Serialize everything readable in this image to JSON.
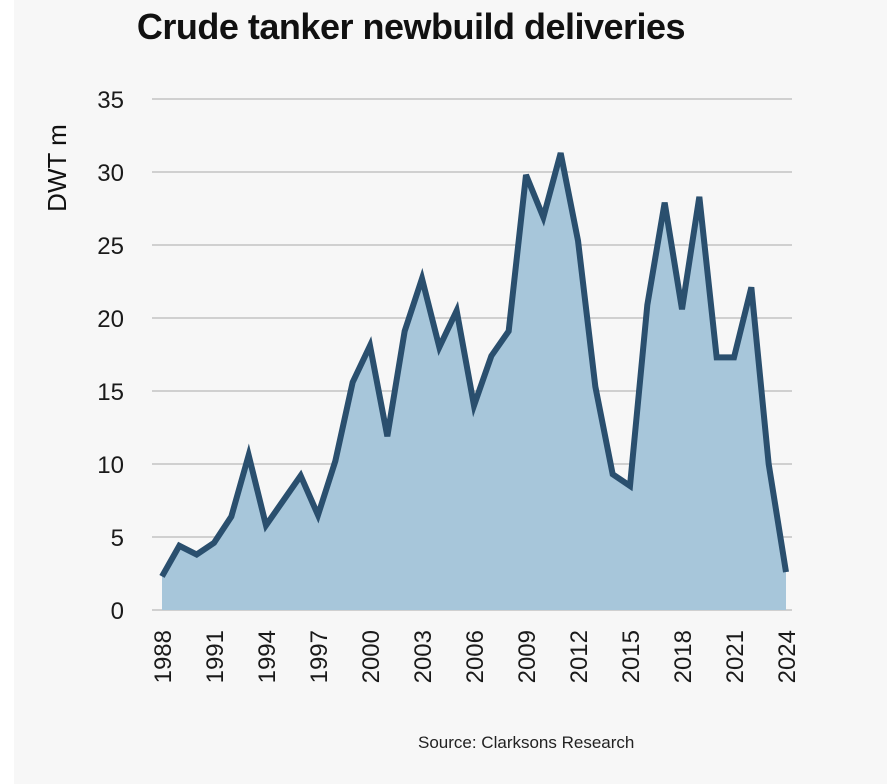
{
  "chart_data": {
    "type": "area",
    "title": "Crude tanker newbuild deliveries",
    "ylabel": "DWT m",
    "xlabel": "",
    "source": "Source: Clarksons Research",
    "ylim": [
      0,
      35
    ],
    "yticks": [
      0,
      5,
      10,
      15,
      20,
      25,
      30,
      35
    ],
    "xticks": [
      1988,
      1991,
      1994,
      1997,
      2000,
      2003,
      2006,
      2009,
      2012,
      2015,
      2018,
      2021,
      2024
    ],
    "grid": true,
    "x": [
      1988,
      1989,
      1990,
      1991,
      1992,
      1993,
      1994,
      1995,
      1996,
      1997,
      1998,
      1999,
      2000,
      2001,
      2002,
      2003,
      2004,
      2005,
      2006,
      2007,
      2008,
      2009,
      2010,
      2011,
      2012,
      2013,
      2014,
      2015,
      2016,
      2017,
      2018,
      2019,
      2020,
      2021,
      2022,
      2023,
      2024
    ],
    "series": [
      {
        "values": [
          2.3,
          4.4,
          3.8,
          4.6,
          6.4,
          10.6,
          5.8,
          7.5,
          9.2,
          6.5,
          10.2,
          15.6,
          18.1,
          11.9,
          19.1,
          22.7,
          18.0,
          20.5,
          14.0,
          17.4,
          19.1,
          29.8,
          26.9,
          31.3,
          25.3,
          15.3,
          9.3,
          8.5,
          20.9,
          27.9,
          20.6,
          28.3,
          17.3,
          17.3,
          22.1,
          10.0,
          2.6
        ],
        "color": "#2a4f6e",
        "fill": "#a7c6da"
      }
    ],
    "colors": {
      "line": "#2a4f6e",
      "fill": "#a7c6da",
      "grid": "#d0d0d0",
      "background": "#f7f7f7"
    }
  }
}
